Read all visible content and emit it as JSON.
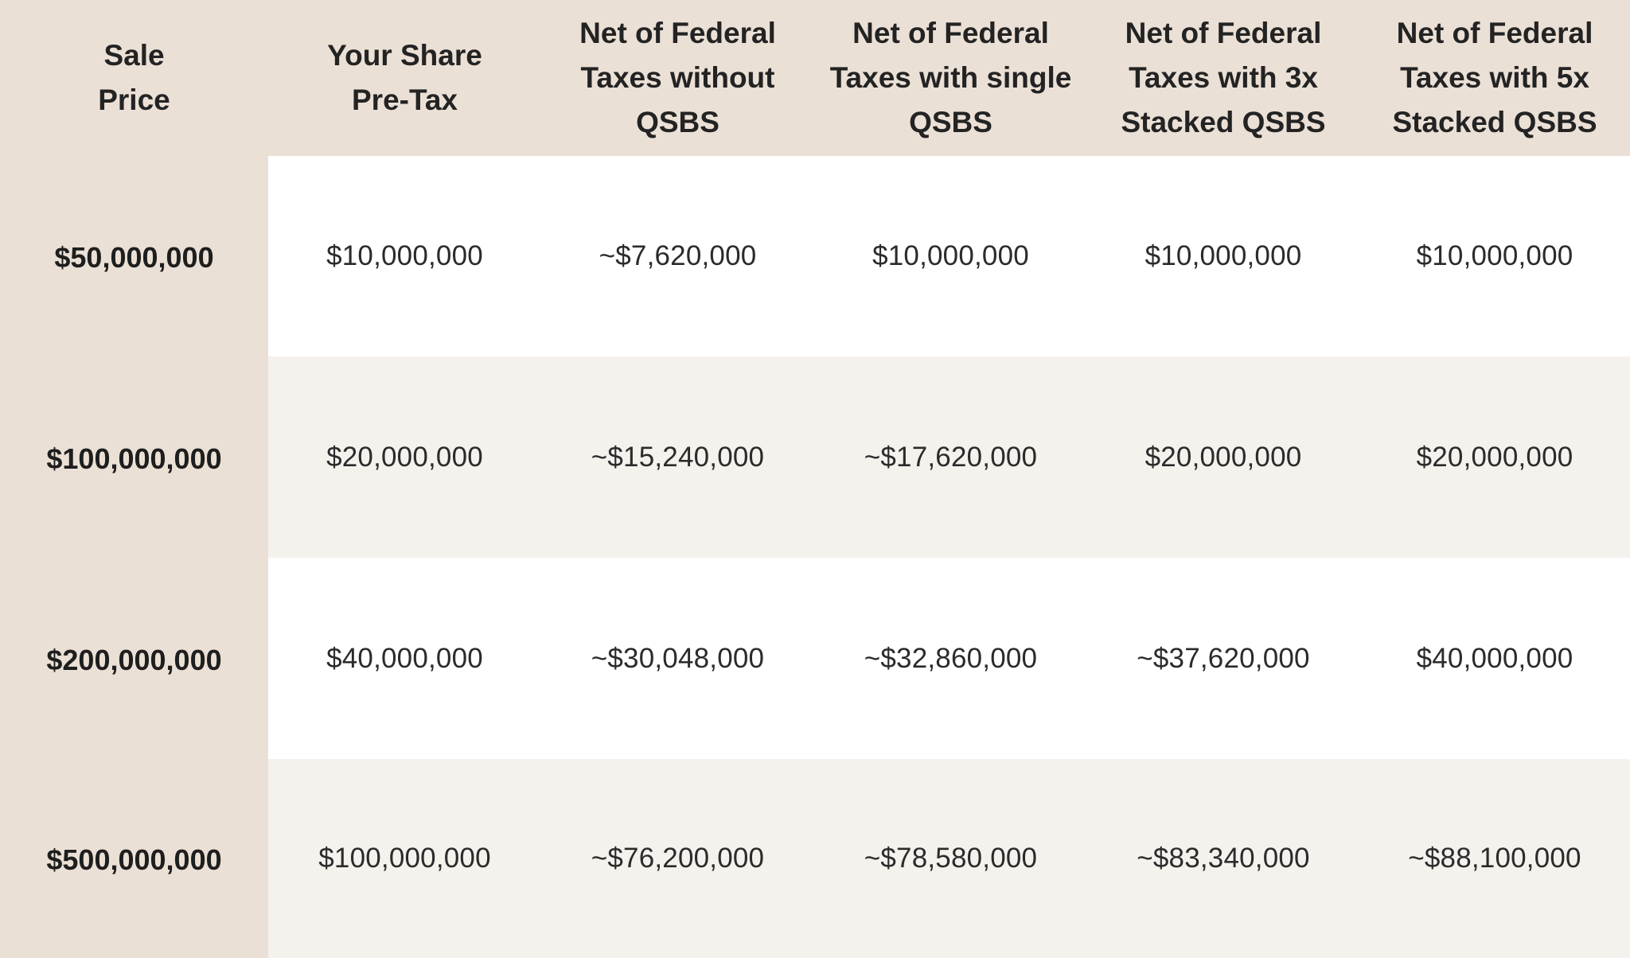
{
  "headers": [
    "Sale Price",
    "Your Share Pre-Tax",
    "Net of Federal Taxes without QSBS",
    "Net of Federal Taxes with single QSBS",
    "Net of Federal Taxes with 3x Stacked QSBS",
    "Net of Federal Taxes with 5x Stacked QSBS"
  ],
  "rows": [
    [
      "$50,000,000",
      "$10,000,000",
      "~$7,620,000",
      "$10,000,000",
      "$10,000,000",
      "$10,000,000"
    ],
    [
      "$100,000,000",
      "$20,000,000",
      "~$15,240,000",
      "~$17,620,000",
      "$20,000,000",
      "$20,000,000"
    ],
    [
      "$200,000,000",
      "$40,000,000",
      "~$30,048,000",
      "~$32,860,000",
      "~$37,620,000",
      "$40,000,000"
    ],
    [
      "$500,000,000",
      "$100,000,000",
      "~$76,200,000",
      "~$78,580,000",
      "~$83,340,000",
      "~$88,100,000"
    ]
  ],
  "colors": {
    "header_background": "#ebe0d6",
    "row_alt_background": "#f5f1ed",
    "row_background": "#ffffff"
  }
}
